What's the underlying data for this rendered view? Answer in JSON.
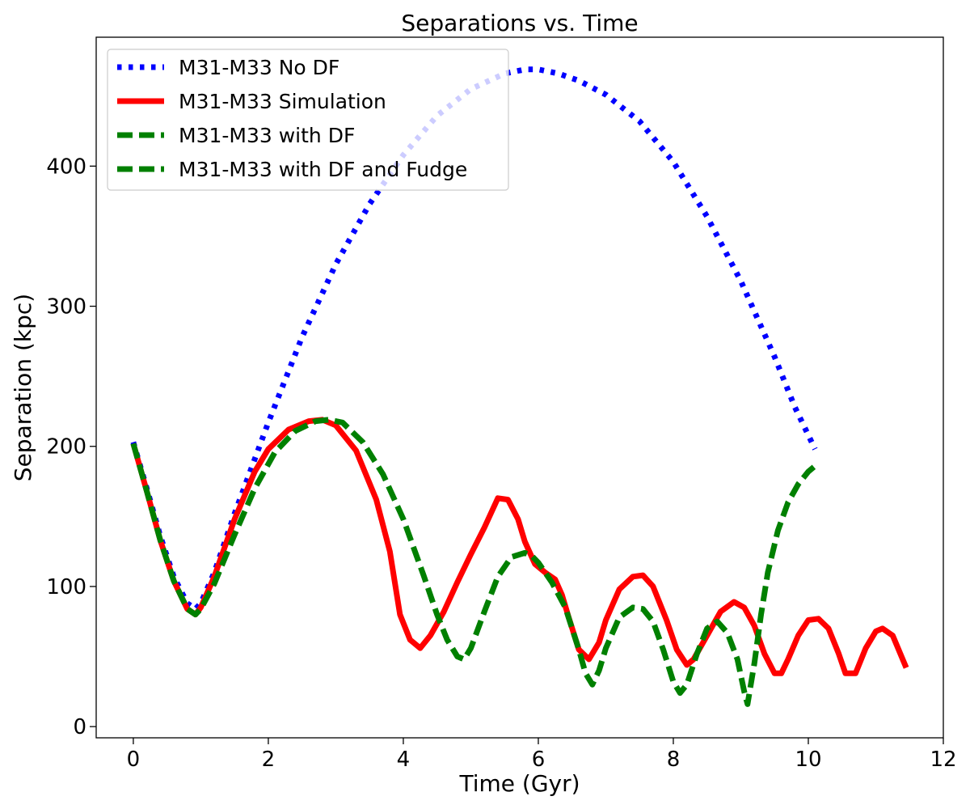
{
  "chart_data": {
    "type": "line",
    "title": "Separations vs. Time",
    "xlabel": "Time (Gyr)",
    "ylabel": "Separation (kpc)",
    "xlim": [
      -0.55,
      12.0
    ],
    "ylim": [
      -8,
      492
    ],
    "xticks": [
      0,
      2,
      4,
      6,
      8,
      10,
      12
    ],
    "yticks": [
      0,
      100,
      200,
      300,
      400
    ],
    "xtick_labels": [
      "0",
      "2",
      "4",
      "6",
      "8",
      "10",
      "12"
    ],
    "ytick_labels": [
      "0",
      "100",
      "200",
      "300",
      "400"
    ],
    "grid": false,
    "legend_position": "top-left",
    "series": [
      {
        "name": "M31-M33 No DF",
        "color": "#0000ff",
        "style": "dotted",
        "x": [
          0,
          0.2,
          0.4,
          0.6,
          0.8,
          0.92,
          1.0,
          1.2,
          1.5,
          2.0,
          2.5,
          3.0,
          3.5,
          4.0,
          4.5,
          5.0,
          5.5,
          5.8,
          6.0,
          6.3,
          6.6,
          7.0,
          7.5,
          8.0,
          8.5,
          9.0,
          9.5,
          9.8,
          10.1
        ],
        "y": [
          203,
          170,
          136,
          107,
          88,
          84,
          88,
          110,
          152,
          217,
          278,
          330,
          373,
          408,
          436,
          455,
          466,
          469,
          469,
          466,
          461,
          451,
          432,
          403,
          364,
          318,
          264,
          228,
          198
        ]
      },
      {
        "name": "M31-M33 Simulation",
        "color": "#ff0000",
        "style": "solid",
        "x": [
          0,
          0.2,
          0.4,
          0.6,
          0.8,
          0.92,
          1.0,
          1.2,
          1.5,
          1.8,
          2.0,
          2.3,
          2.6,
          2.8,
          3.0,
          3.3,
          3.6,
          3.8,
          3.95,
          4.1,
          4.25,
          4.4,
          4.6,
          4.8,
          5.0,
          5.2,
          5.4,
          5.55,
          5.7,
          5.8,
          5.95,
          6.1,
          6.25,
          6.35,
          6.45,
          6.6,
          6.75,
          6.9,
          7.0,
          7.2,
          7.4,
          7.55,
          7.7,
          7.9,
          8.05,
          8.2,
          8.3,
          8.5,
          8.7,
          8.9,
          9.05,
          9.2,
          9.35,
          9.5,
          9.6,
          9.7,
          9.85,
          10.0,
          10.15,
          10.3,
          10.45,
          10.55,
          10.7,
          10.85,
          11.0,
          11.1,
          11.25,
          11.45
        ],
        "y": [
          202,
          168,
          133,
          104,
          84,
          80,
          85,
          107,
          148,
          182,
          198,
          212,
          218,
          219,
          215,
          197,
          162,
          125,
          80,
          62,
          56,
          65,
          82,
          103,
          123,
          142,
          163,
          162,
          148,
          132,
          116,
          110,
          105,
          94,
          78,
          55,
          48,
          60,
          76,
          98,
          107,
          108,
          100,
          76,
          55,
          44,
          48,
          65,
          82,
          89,
          85,
          72,
          52,
          38,
          38,
          48,
          65,
          76,
          77,
          70,
          52,
          38,
          38,
          56,
          68,
          70,
          65,
          42
        ]
      },
      {
        "name": "M31-M33 with DF",
        "color": "#008000",
        "style": "dashed",
        "x": [
          0,
          0.2,
          0.4,
          0.6,
          0.8,
          0.92,
          1.0,
          1.2,
          1.5,
          1.8,
          2.1,
          2.4,
          2.7,
          2.9,
          3.1,
          3.4,
          3.7,
          4.0,
          4.3,
          4.5,
          4.65,
          4.8,
          4.9,
          5.0,
          5.2,
          5.4,
          5.6,
          5.8,
          5.9,
          6.0,
          6.2,
          6.4,
          6.6,
          6.7,
          6.8,
          6.9,
          7.0,
          7.2,
          7.4,
          7.55,
          7.7,
          7.85,
          8.0,
          8.1,
          8.2,
          8.35,
          8.5,
          8.65,
          8.8,
          8.95,
          9.05,
          9.1,
          9.2,
          9.3,
          9.4,
          9.55,
          9.7,
          9.85,
          10.0,
          10.1
        ],
        "y": [
          202,
          168,
          133,
          104,
          84,
          80,
          84,
          102,
          137,
          170,
          196,
          211,
          218,
          219,
          217,
          203,
          180,
          148,
          108,
          80,
          62,
          50,
          48,
          56,
          82,
          107,
          121,
          124,
          122,
          117,
          103,
          85,
          55,
          38,
          30,
          40,
          56,
          78,
          85,
          84,
          75,
          55,
          32,
          24,
          30,
          52,
          70,
          75,
          67,
          48,
          25,
          16,
          45,
          80,
          110,
          140,
          160,
          173,
          182,
          186
        ]
      },
      {
        "name": "M31-M33 with DF and Fudge",
        "color": "#008000",
        "style": "dashed"
      }
    ]
  }
}
